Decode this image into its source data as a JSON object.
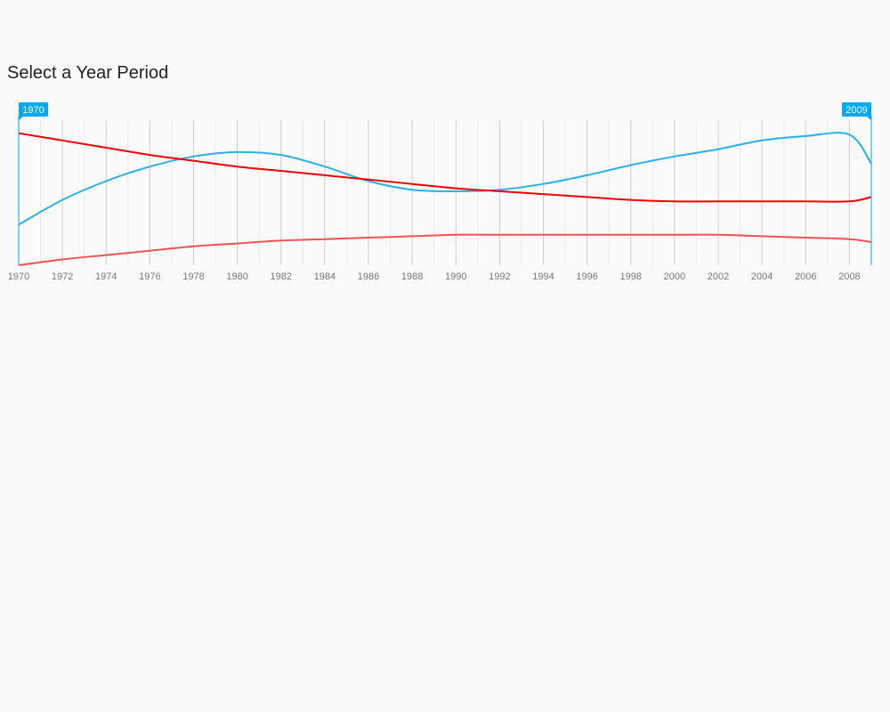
{
  "page": {
    "title": "Select a Year Period"
  },
  "range": {
    "start_label": "1970",
    "end_label": "2009",
    "start_year": 1970,
    "end_year": 2009
  },
  "colors": {
    "accent": "#03a9f4",
    "series_blue": "#29b0ea",
    "series_red": "#ee0000",
    "series_coral": "#ef5350",
    "grid_major": "#cccccc",
    "grid_minor": "#e8e8e8",
    "tick_text": "#777777"
  },
  "chart_data": {
    "type": "line",
    "x": [
      1970,
      1972,
      1974,
      1976,
      1978,
      1980,
      1982,
      1984,
      1986,
      1988,
      1990,
      1992,
      1994,
      1996,
      1998,
      2000,
      2002,
      2004,
      2006,
      2008,
      2009
    ],
    "ylim": [
      0,
      100
    ],
    "tick_labels": [
      "1970",
      "1972",
      "1974",
      "1976",
      "1978",
      "1980",
      "1982",
      "1984",
      "1986",
      "1988",
      "1990",
      "1992",
      "1994",
      "1996",
      "1998",
      "2000",
      "2002",
      "2004",
      "2006",
      "2008"
    ],
    "series": [
      {
        "color": "#29b0ea",
        "values": [
          28,
          45,
          58,
          68,
          75,
          78,
          76,
          68,
          58,
          52,
          51,
          52,
          56,
          62,
          69,
          75,
          80,
          86,
          89,
          90,
          70
        ]
      },
      {
        "color": "#ee0000",
        "values": [
          91,
          86,
          81,
          76,
          72,
          68,
          65,
          62,
          59,
          56,
          53,
          51,
          49,
          47,
          45,
          44,
          44,
          44,
          44,
          44,
          47
        ]
      },
      {
        "color": "#ef5350",
        "values": [
          0,
          4,
          7,
          10,
          13,
          15,
          17,
          18,
          19,
          20,
          21,
          21,
          21,
          21,
          21,
          21,
          21,
          20,
          19,
          18,
          16
        ]
      }
    ]
  }
}
